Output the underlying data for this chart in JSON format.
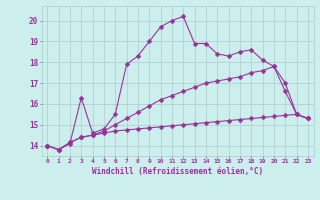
{
  "xlabel": "Windchill (Refroidissement éolien,°C)",
  "x_values": [
    0,
    1,
    2,
    3,
    4,
    5,
    6,
    7,
    8,
    9,
    10,
    11,
    12,
    13,
    14,
    15,
    16,
    17,
    18,
    19,
    20,
    21,
    22,
    23
  ],
  "line1_y": [
    14.0,
    13.8,
    14.1,
    16.3,
    14.6,
    14.8,
    15.5,
    17.9,
    18.3,
    19.0,
    19.7,
    20.0,
    20.2,
    18.9,
    18.9,
    18.4,
    18.3,
    18.5,
    18.6,
    18.1,
    17.8,
    16.6,
    15.5,
    15.3
  ],
  "line2_y": [
    14.0,
    13.8,
    14.15,
    14.4,
    14.5,
    14.6,
    14.7,
    14.75,
    14.8,
    14.85,
    14.9,
    14.95,
    15.0,
    15.05,
    15.1,
    15.15,
    15.2,
    15.25,
    15.3,
    15.35,
    15.4,
    15.45,
    15.5,
    15.3
  ],
  "line3_y": [
    14.0,
    13.8,
    14.15,
    14.4,
    14.5,
    14.7,
    15.0,
    15.3,
    15.6,
    15.9,
    16.2,
    16.4,
    16.6,
    16.8,
    17.0,
    17.1,
    17.2,
    17.3,
    17.5,
    17.6,
    17.8,
    17.0,
    15.5,
    15.3
  ],
  "bg_color": "#cceeed",
  "line_color": "#993399",
  "grid_color": "#aacccc",
  "ylim": [
    13.5,
    20.7
  ],
  "yticks": [
    14,
    15,
    16,
    17,
    18,
    19,
    20
  ],
  "xlim": [
    -0.5,
    23.5
  ]
}
